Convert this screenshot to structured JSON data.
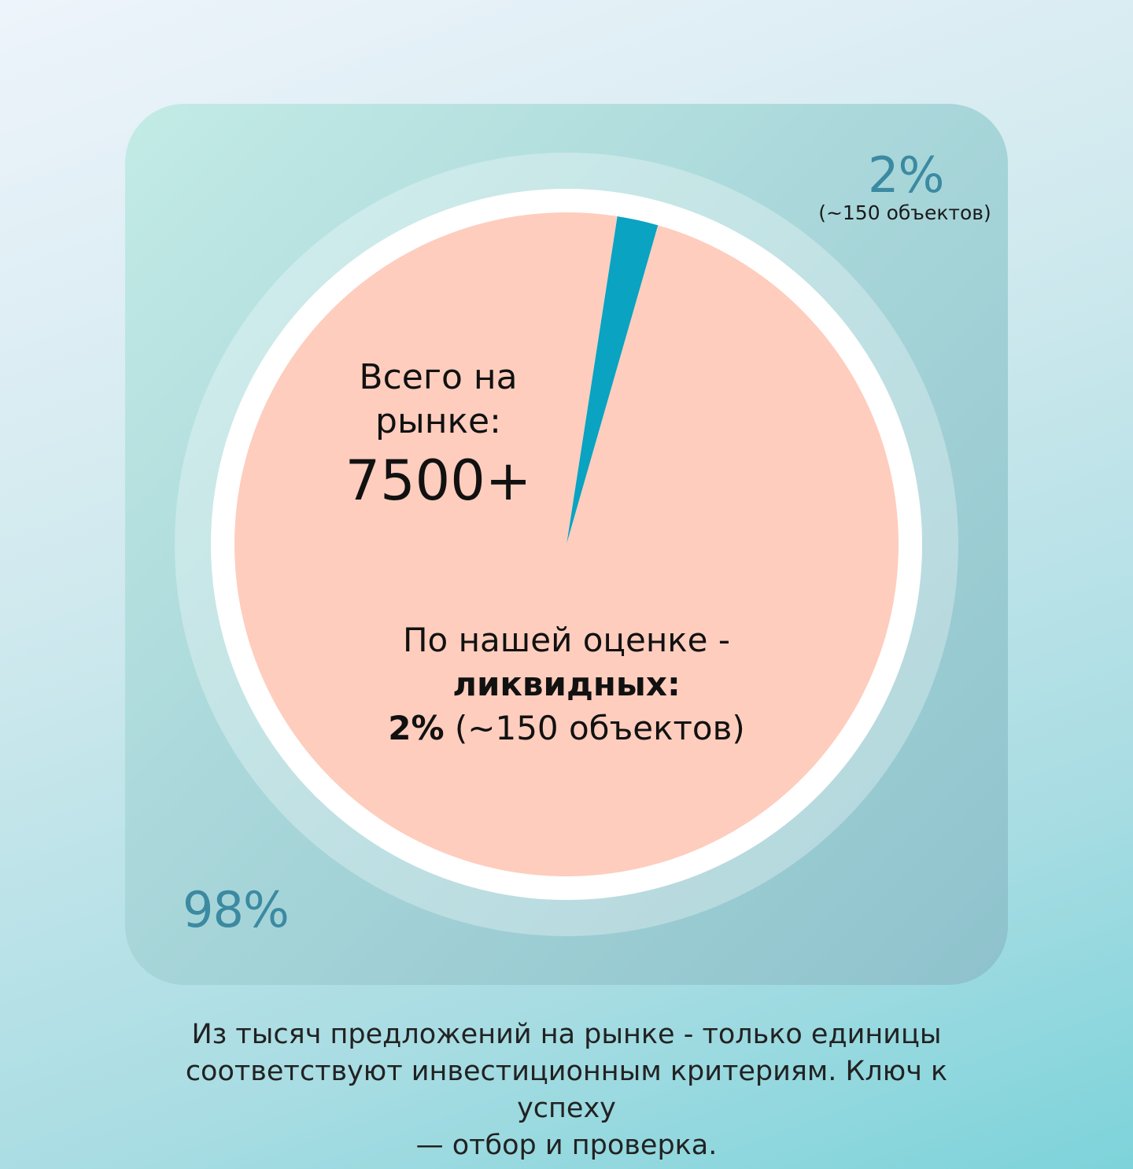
{
  "chart_data": {
    "type": "pie",
    "slices": [
      {
        "label": "98%",
        "value": 98,
        "color": "#fecdbd"
      },
      {
        "label": "2%",
        "value": 2,
        "color": "#0aa3c2"
      }
    ],
    "annotation_total_lines": [
      "Всего на",
      "рынке:"
    ],
    "annotation_total_value": "7500+",
    "annotation_liquid_lines": [
      "По нашей оценке -",
      "ликвидных:"
    ],
    "annotation_liquid_pct": "2%",
    "annotation_liquid_count": "(~150 объектов)",
    "small_label_pct": "2%",
    "small_label_count": "(~150 объектов)",
    "large_label_pct": "98%"
  },
  "caption_lines": [
    "Из тысяч предложений на рынке - только единицы",
    "соответствуют инвестиционным критериям. Ключ к успеху",
    "— отбор и проверка."
  ]
}
